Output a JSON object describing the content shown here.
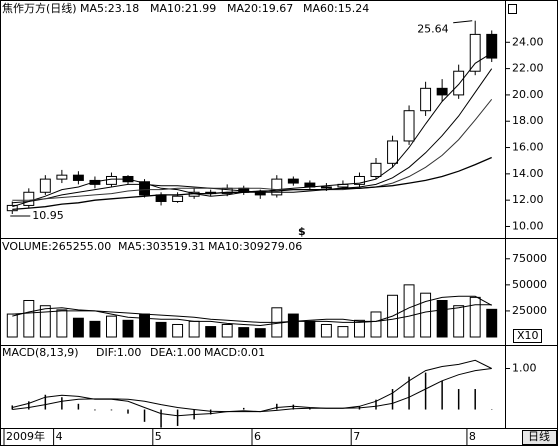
{
  "chart_data": [
    {
      "type": "candlestick",
      "title_parts": [
        "焦作万方(日线)",
        "MA5:23.18",
        "MA10:21.99",
        "MA20:19.67",
        "MA60:15.24"
      ],
      "categories": [
        "2009年",
        null,
        null,
        "4",
        null,
        null,
        null,
        null,
        null,
        "5",
        null,
        null,
        null,
        null,
        null,
        "6",
        null,
        null,
        null,
        null,
        null,
        "7",
        null,
        null,
        null,
        null,
        null,
        null,
        "8",
        null
      ],
      "open": [
        11.2,
        11.6,
        12.6,
        13.6,
        13.9,
        13.5,
        13.2,
        13.8,
        13.4,
        12.4,
        11.9,
        12.3,
        12.6,
        12.5,
        12.9,
        12.6,
        12.4,
        13.6,
        13.3,
        13.0,
        13.0,
        13.2,
        13.8,
        14.8,
        16.5,
        18.8,
        20.5,
        20.0,
        21.8,
        24.6
      ],
      "high": [
        11.9,
        12.9,
        13.9,
        14.3,
        14.2,
        13.8,
        14.1,
        13.9,
        13.6,
        12.6,
        12.6,
        12.9,
        12.8,
        13.2,
        13.1,
        12.8,
        13.9,
        13.8,
        13.5,
        13.3,
        13.5,
        14.1,
        15.2,
        16.9,
        19.2,
        21.0,
        21.2,
        22.3,
        25.64,
        24.9
      ],
      "low": [
        10.95,
        11.4,
        12.4,
        13.3,
        13.2,
        12.9,
        13.0,
        13.2,
        12.2,
        11.6,
        11.8,
        12.1,
        12.3,
        12.3,
        12.4,
        12.1,
        12.2,
        13.1,
        12.8,
        12.7,
        12.8,
        13.0,
        13.6,
        14.5,
        16.2,
        18.4,
        19.5,
        19.7,
        21.5,
        22.5
      ],
      "close": [
        11.6,
        12.6,
        13.6,
        13.9,
        13.5,
        13.2,
        13.8,
        13.4,
        12.4,
        11.9,
        12.3,
        12.6,
        12.5,
        12.9,
        12.6,
        12.4,
        13.6,
        13.3,
        13.0,
        13.0,
        13.2,
        13.8,
        14.8,
        16.5,
        18.8,
        20.5,
        20.0,
        21.8,
        24.6,
        22.8
      ],
      "series": [
        {
          "name": "MA5",
          "color": "#000000",
          "values": [
            11.5,
            11.9,
            12.3,
            12.8,
            13.0,
            13.4,
            13.6,
            13.6,
            13.3,
            12.9,
            12.8,
            12.5,
            12.3,
            12.4,
            12.6,
            12.6,
            12.8,
            12.9,
            13.0,
            13.1,
            13.2,
            13.3,
            13.6,
            14.5,
            16.0,
            17.8,
            19.5,
            20.8,
            22.4,
            23.18
          ]
        },
        {
          "name": "MA10",
          "color": "#000000",
          "values": [
            11.8,
            11.9,
            12.1,
            12.4,
            12.6,
            12.8,
            13.0,
            13.2,
            13.2,
            13.1,
            13.1,
            13.0,
            12.9,
            12.8,
            12.7,
            12.6,
            12.6,
            12.6,
            12.7,
            12.8,
            12.9,
            13.0,
            13.2,
            13.7,
            14.5,
            15.6,
            16.9,
            18.4,
            20.2,
            21.99
          ]
        },
        {
          "name": "MA20",
          "color": "#333333",
          "values": [
            12.0,
            12.0,
            12.1,
            12.2,
            12.3,
            12.4,
            12.5,
            12.7,
            12.8,
            12.8,
            12.9,
            12.9,
            12.9,
            12.9,
            12.9,
            12.9,
            12.8,
            12.8,
            12.8,
            12.8,
            12.8,
            12.9,
            13.0,
            13.3,
            13.8,
            14.5,
            15.4,
            16.6,
            18.1,
            19.67
          ]
        },
        {
          "name": "MA60",
          "color": "#000000",
          "values": [
            11.3,
            11.4,
            11.5,
            11.7,
            11.8,
            12.0,
            12.1,
            12.2,
            12.3,
            12.4,
            12.4,
            12.5,
            12.5,
            12.6,
            12.6,
            12.7,
            12.7,
            12.8,
            12.8,
            12.8,
            12.9,
            12.9,
            13.0,
            13.1,
            13.3,
            13.5,
            13.8,
            14.2,
            14.7,
            15.24
          ]
        }
      ],
      "high_label": "25.64",
      "low_label": "10.95",
      "marker": "$",
      "ylim": [
        9.2,
        26.15
      ],
      "yticks": [
        {
          "value": 10,
          "label": "10.00"
        },
        {
          "value": 12,
          "label": "12.00"
        },
        {
          "value": 14,
          "label": "14.00"
        },
        {
          "value": 16,
          "label": "16.00"
        },
        {
          "value": 18,
          "label": "18.00"
        },
        {
          "value": 20,
          "label": "20.00"
        },
        {
          "value": 22,
          "label": "22.00"
        },
        {
          "value": 24,
          "label": "24.00"
        }
      ]
    },
    {
      "type": "bar",
      "title_parts": [
        "VOLUME:265255.00",
        "MA5:303519.31",
        "MA10:309279.06"
      ],
      "values": [
        22000,
        35000,
        30000,
        26000,
        18000,
        15000,
        20000,
        16000,
        22000,
        14000,
        12000,
        15000,
        10000,
        12000,
        9000,
        8000,
        28000,
        22000,
        15000,
        12000,
        10000,
        16000,
        24000,
        40000,
        50000,
        42000,
        35000,
        30000,
        38000,
        26525.5
      ],
      "series": [
        {
          "name": "MA5",
          "color": "#000000",
          "values": [
            20000,
            24000,
            27000,
            28000,
            26000,
            25000,
            22000,
            19000,
            18000,
            17000,
            17000,
            15000,
            15000,
            13000,
            12000,
            11000,
            13000,
            15000,
            16000,
            17000,
            17000,
            15000,
            15000,
            20000,
            28000,
            34000,
            38000,
            39000,
            39000,
            30351.9
          ]
        },
        {
          "name": "MA10",
          "color": "#000000",
          "values": [
            22000,
            23000,
            24000,
            25000,
            25000,
            25000,
            24000,
            23000,
            22000,
            21000,
            20000,
            19000,
            17000,
            16000,
            15000,
            14000,
            14000,
            15000,
            15000,
            15000,
            14000,
            14000,
            15000,
            17000,
            20000,
            24000,
            26000,
            28000,
            31000,
            30927.9
          ]
        }
      ],
      "unit_label": "X10",
      "ylim": [
        0,
        93000
      ],
      "yticks": [
        25000,
        50000,
        75000
      ]
    },
    {
      "type": "macd",
      "title_parts": [
        "MACD(8,13,9)",
        "DIF:1.00",
        "DEA:1.00",
        "MACD:0.01"
      ],
      "values": [
        0.1,
        0.2,
        0.36,
        0.3,
        0.14,
        -0.02,
        -0.02,
        -0.1,
        -0.3,
        -0.44,
        -0.4,
        -0.24,
        -0.12,
        0,
        0.04,
        0,
        0.14,
        0.12,
        0.04,
        0,
        0,
        0.08,
        0.24,
        0.5,
        0.8,
        0.9,
        0.7,
        0.5,
        0.5,
        0.01
      ],
      "series": [
        {
          "name": "DIF",
          "color": "#000000",
          "values": [
            0.05,
            0.15,
            0.3,
            0.35,
            0.32,
            0.25,
            0.25,
            0.2,
            0.05,
            -0.1,
            -0.15,
            -0.12,
            -0.1,
            -0.05,
            -0.03,
            -0.05,
            0.05,
            0.08,
            0.05,
            0.03,
            0.03,
            0.08,
            0.2,
            0.4,
            0.7,
            0.95,
            1.05,
            1.1,
            1.2,
            1.0
          ]
        },
        {
          "name": "DEA",
          "color": "#000000",
          "values": [
            0.0,
            0.05,
            0.12,
            0.2,
            0.25,
            0.26,
            0.26,
            0.25,
            0.2,
            0.12,
            0.05,
            0.0,
            -0.04,
            -0.05,
            -0.05,
            -0.05,
            -0.02,
            0.02,
            0.03,
            0.03,
            0.03,
            0.04,
            0.08,
            0.15,
            0.3,
            0.5,
            0.7,
            0.85,
            0.95,
            1.0
          ]
        }
      ],
      "ylim": [
        -0.45,
        1.5
      ],
      "yticks": [
        {
          "value": 1,
          "label": "1.00"
        }
      ]
    }
  ],
  "button": "日线"
}
